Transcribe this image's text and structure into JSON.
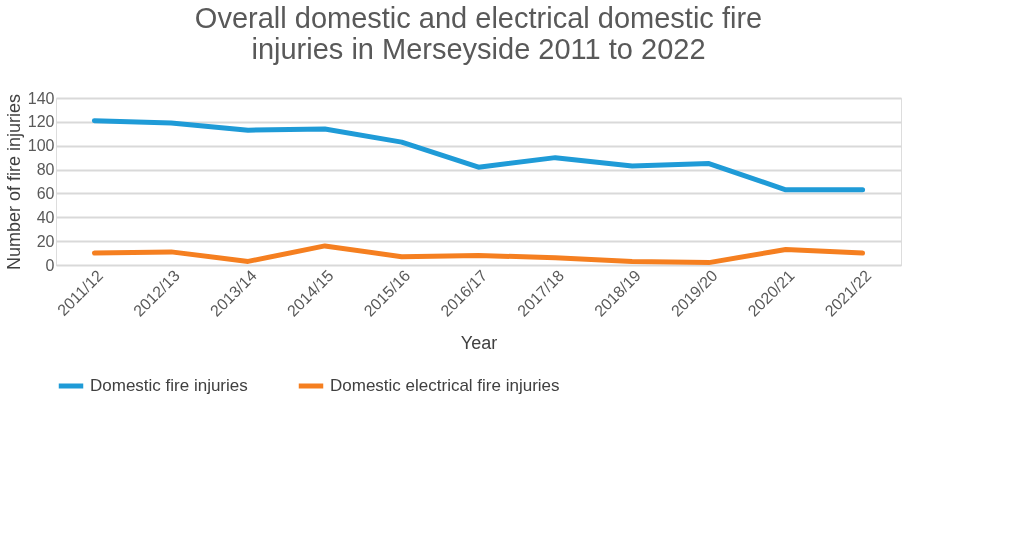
{
  "chart_data": {
    "type": "line",
    "title": [
      "Overall domestic and electrical domestic fire",
      "injuries in Merseyside 2011 to 2022"
    ],
    "xlabel": "Year",
    "ylabel": "Number of fire injuries",
    "categories": [
      "2011/12",
      "2012/13",
      "2013/14",
      "2014/15",
      "2015/16",
      "2016/17",
      "2017/18",
      "2018/19",
      "2019/20",
      "2020/21",
      "2021/22"
    ],
    "series": [
      {
        "name": "Domestic fire injuries",
        "color": "#1f9bd7",
        "values": [
          121,
          119,
          113,
          114,
          103,
          82,
          90,
          83,
          85,
          63,
          63
        ]
      },
      {
        "name": "Domestic electrical fire injuries",
        "color": "#f57f20",
        "values": [
          10,
          11,
          3,
          16,
          7,
          8,
          6,
          3,
          2,
          13,
          10
        ]
      }
    ],
    "ylim": [
      0,
      140
    ],
    "yticks": [
      0,
      20,
      40,
      60,
      80,
      100,
      120,
      140
    ],
    "grid": "y",
    "legend": "bottom",
    "marker": "none",
    "line_style": "solid"
  }
}
